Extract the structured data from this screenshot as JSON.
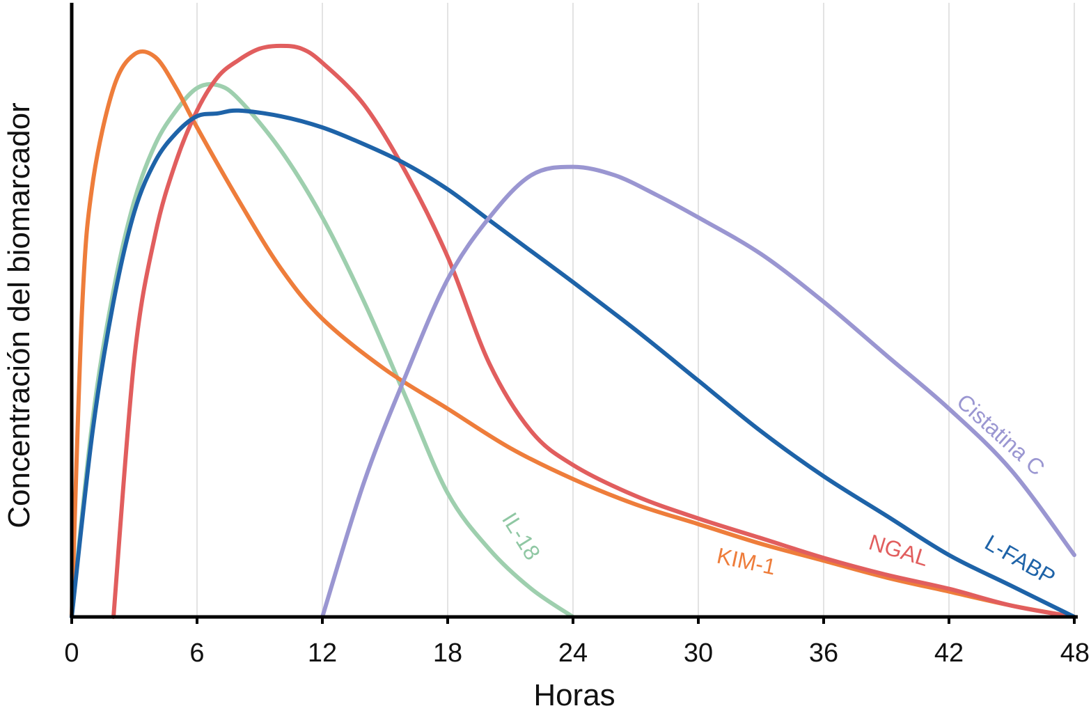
{
  "chart_data": {
    "type": "line",
    "title": "",
    "xlabel": "Horas",
    "ylabel": "Concentración del biomarcador",
    "xlim": [
      0,
      48
    ],
    "ylim": [
      0,
      100
    ],
    "x_ticks": [
      0,
      6,
      12,
      18,
      24,
      30,
      36,
      42,
      48
    ],
    "y_ticks_shown": false,
    "grid": "vertical",
    "legend": "inline labels",
    "series": [
      {
        "name": "IL-18",
        "color": "#9ecfae",
        "x": [
          0,
          1,
          2,
          3,
          4,
          5,
          6,
          7,
          8,
          10,
          12,
          14,
          16,
          18,
          20,
          22,
          24
        ],
        "y": [
          0,
          35,
          58,
          74,
          84,
          90,
          94,
          94.5,
          92,
          83,
          71,
          56,
          39,
          22,
          12,
          5,
          0
        ]
      },
      {
        "name": "KIM-1",
        "color": "#ee7d3b",
        "x": [
          0,
          0.5,
          1,
          2,
          3,
          4,
          5,
          6,
          8,
          10,
          12,
          15,
          18,
          21,
          24,
          27,
          30,
          33,
          36,
          39,
          42,
          45,
          48
        ],
        "y": [
          0,
          55,
          77,
          94,
          100,
          99.5,
          94,
          87,
          74,
          62,
          53,
          44,
          37,
          30,
          24.5,
          20,
          16.5,
          13,
          10,
          7,
          4.5,
          2,
          0
        ]
      },
      {
        "name": "NGAL",
        "color": "#e15e5e",
        "x": [
          2,
          3,
          4,
          5,
          6,
          7,
          8,
          9,
          10,
          11,
          12,
          14,
          16,
          18,
          20,
          22,
          24,
          27,
          30,
          33,
          36,
          39,
          42,
          45,
          48
        ],
        "y": [
          0,
          46,
          68,
          81,
          90,
          96,
          99,
          101,
          101.5,
          101,
          98.5,
          91,
          79,
          64,
          45,
          33,
          27,
          21.5,
          17.5,
          14,
          10.5,
          7.5,
          5,
          2,
          0
        ]
      },
      {
        "name": "L-FABP",
        "color": "#1e63a8",
        "x": [
          0,
          1,
          2,
          3,
          4,
          5,
          6,
          7,
          8,
          10,
          12,
          14,
          16,
          18,
          20,
          22,
          24,
          27,
          30,
          33,
          36,
          39,
          42,
          45,
          48
        ],
        "y": [
          0,
          33,
          56,
          72,
          81,
          86,
          89,
          89.5,
          90,
          89,
          87,
          84,
          80.5,
          76,
          70.5,
          65,
          59.5,
          51,
          42,
          33,
          25,
          18,
          11,
          5.5,
          0
        ]
      },
      {
        "name": "Cistatina C",
        "color": "#9a96d1",
        "x": [
          12,
          14,
          16,
          18,
          20,
          22,
          24,
          26,
          28,
          30,
          33,
          36,
          39,
          42,
          45,
          48
        ],
        "y": [
          0,
          24,
          43,
          60,
          71,
          78.5,
          80,
          78.5,
          75,
          71,
          64.5,
          56,
          46.5,
          37,
          26,
          11
        ]
      }
    ]
  },
  "labels": {
    "il18": "IL-18",
    "kim1": "KIM-1",
    "ngal": "NGAL",
    "lfabp": "L-FABP",
    "cistatina": "Cistatina C"
  }
}
